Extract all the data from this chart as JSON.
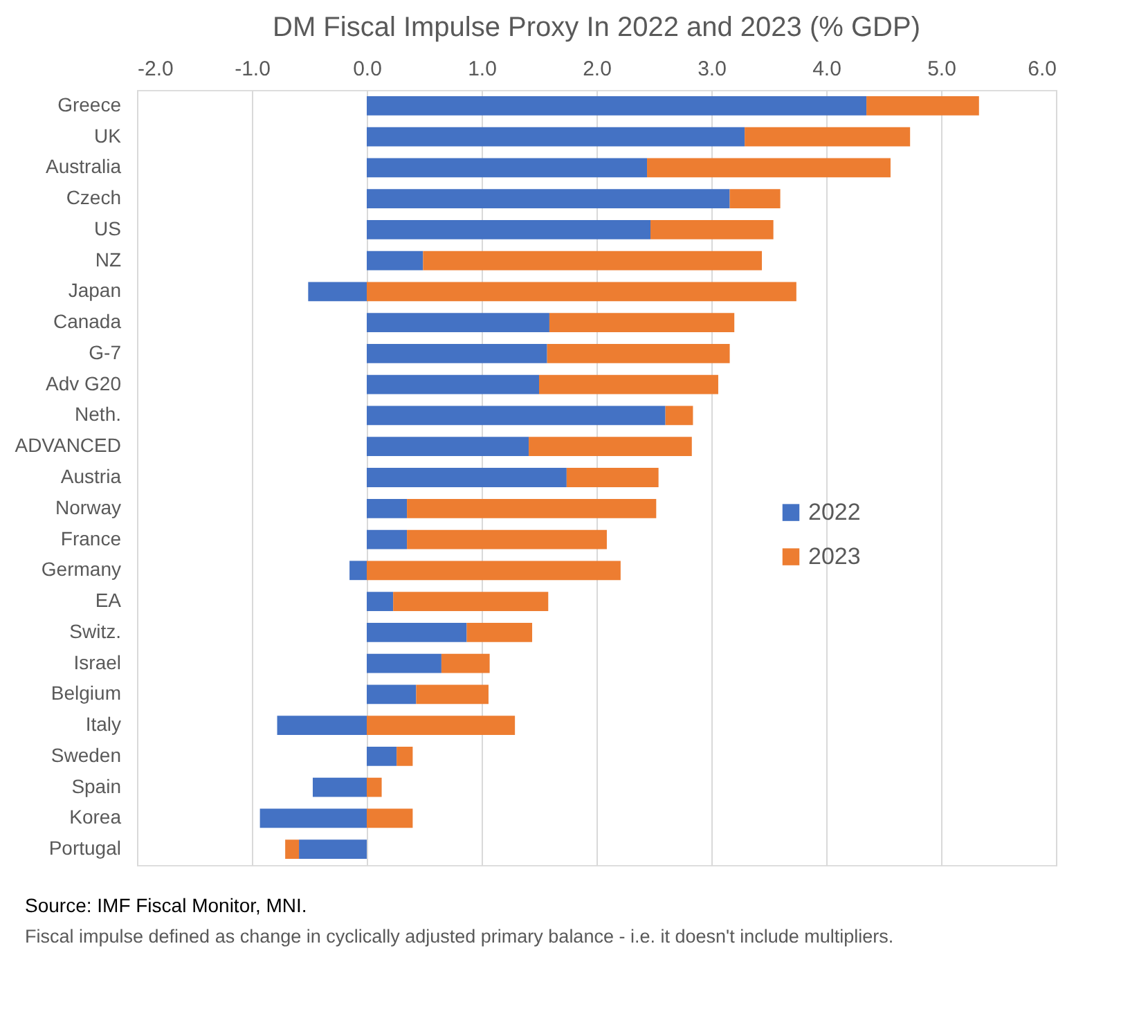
{
  "chart_data": {
    "type": "bar",
    "orientation": "horizontal",
    "stacked": true,
    "title": "DM Fiscal Impulse Proxy In 2022 and 2023 (% GDP)",
    "categories": [
      "Greece",
      "UK",
      "Australia",
      "Czech",
      "US",
      "NZ",
      "Japan",
      "Canada",
      "G-7",
      "Adv G20",
      "Neth.",
      "ADVANCED",
      "Austria",
      "Norway",
      "France",
      "Germany",
      "EA",
      "Switz.",
      "Israel",
      "Belgium",
      "Italy",
      "Sweden",
      "Spain",
      "Korea",
      "Portugal"
    ],
    "series": [
      {
        "name": "2022",
        "color": "#4472c4",
        "values": [
          4.35,
          3.29,
          2.44,
          3.16,
          2.47,
          0.49,
          -0.51,
          1.59,
          1.57,
          1.5,
          2.6,
          1.41,
          1.74,
          0.35,
          0.35,
          -0.15,
          0.23,
          0.87,
          0.65,
          0.43,
          -0.78,
          0.26,
          -0.47,
          -0.93,
          -0.59
        ]
      },
      {
        "name": "2023",
        "color": "#ed7d31",
        "values": [
          0.98,
          1.44,
          2.12,
          0.44,
          1.07,
          2.95,
          3.74,
          1.61,
          1.59,
          1.56,
          0.24,
          1.42,
          0.8,
          2.17,
          1.74,
          2.21,
          1.35,
          0.57,
          0.42,
          0.63,
          1.29,
          0.14,
          0.13,
          0.4,
          -0.12
        ]
      }
    ],
    "xlim": [
      -2,
      6
    ],
    "xticks": [
      {
        "value": -2,
        "label": "-2.0"
      },
      {
        "value": -1,
        "label": "-1.0"
      },
      {
        "value": 0,
        "label": "0.0"
      },
      {
        "value": 1,
        "label": "1.0"
      },
      {
        "value": 2,
        "label": "2.0"
      },
      {
        "value": 3,
        "label": "3.0"
      },
      {
        "value": 4,
        "label": "4.0"
      },
      {
        "value": 5,
        "label": "5.0"
      },
      {
        "value": 6,
        "label": "6.0"
      }
    ],
    "grid": "x",
    "legend": "right",
    "annotations": [
      "Source: IMF Fiscal Monitor, MNI.",
      "Fiscal impulse defined as change in cyclically adjusted primary balance - i.e. it doesn't include multipliers."
    ]
  }
}
